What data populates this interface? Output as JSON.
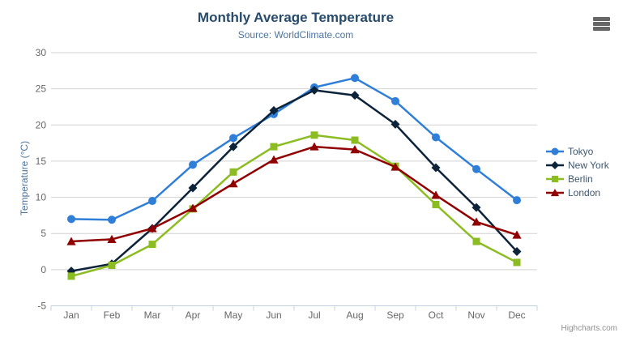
{
  "header": {
    "title": "Monthly Average Temperature",
    "subtitle": "Source: WorldClimate.com"
  },
  "toolbar": {
    "context_menu_icon": "hamburger-icon"
  },
  "credits": {
    "label": "Highcharts.com"
  },
  "colors": {
    "title": "#274b6d",
    "subtitle": "#4d759e",
    "axis_title": "#4d759e",
    "axis_label": "#666666",
    "legend_text": "#3e576f",
    "gridline": "#d2d2d2",
    "axis_line": "#c0d0e0",
    "credits_text": "#909090",
    "menu_icon": "#666666",
    "background": "#ffffff"
  },
  "chart_data": {
    "type": "line",
    "title": "Monthly Average Temperature",
    "subtitle": "Source: WorldClimate.com",
    "categories": [
      "Jan",
      "Feb",
      "Mar",
      "Apr",
      "May",
      "Jun",
      "Jul",
      "Aug",
      "Sep",
      "Oct",
      "Nov",
      "Dec"
    ],
    "series": [
      {
        "name": "Tokyo",
        "color": "#2f7ed8",
        "marker": "circle",
        "values": [
          7.0,
          6.9,
          9.5,
          14.5,
          18.2,
          21.5,
          25.2,
          26.5,
          23.3,
          18.3,
          13.9,
          9.6
        ]
      },
      {
        "name": "New York",
        "color": "#0d233a",
        "marker": "diamond",
        "values": [
          -0.2,
          0.8,
          5.7,
          11.3,
          17.0,
          22.0,
          24.8,
          24.1,
          20.1,
          14.1,
          8.6,
          2.5
        ]
      },
      {
        "name": "Berlin",
        "color": "#8bbc21",
        "marker": "square",
        "values": [
          -0.9,
          0.6,
          3.5,
          8.4,
          13.5,
          17.0,
          18.6,
          17.9,
          14.3,
          9.0,
          3.9,
          1.0
        ]
      },
      {
        "name": "London",
        "color": "#910000",
        "marker": "triangle",
        "values": [
          3.9,
          4.2,
          5.7,
          8.5,
          11.9,
          15.2,
          17.0,
          16.6,
          14.2,
          10.3,
          6.6,
          4.8
        ]
      }
    ],
    "xlabel": "",
    "ylabel": "Temperature (°C)",
    "ylim": [
      -5,
      30
    ],
    "ytick_interval": 5,
    "yticks": [
      -5,
      0,
      5,
      10,
      15,
      20,
      25,
      30
    ],
    "grid": true,
    "legend_position": "right"
  }
}
